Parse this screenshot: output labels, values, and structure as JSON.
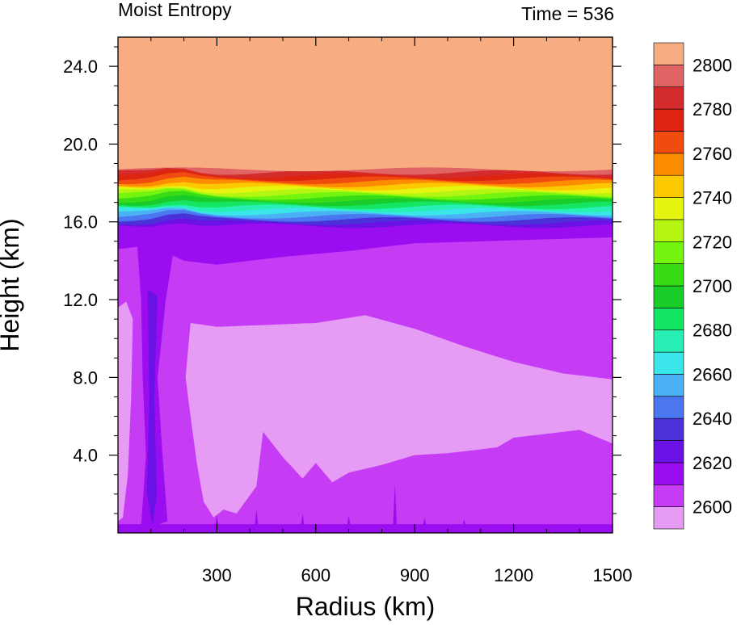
{
  "chart_data": {
    "type": "heatmap",
    "title_left": "Moist Entropy",
    "title_right": "Time = 536",
    "xlabel": "Radius (km)",
    "ylabel": "Height (km)",
    "xlim": [
      0,
      1500
    ],
    "ylim": [
      0,
      25.5
    ],
    "x_ticks": [
      300,
      600,
      900,
      1200,
      1500
    ],
    "x_tick_labels": [
      "300",
      "600",
      "900",
      "1200",
      "1500"
    ],
    "y_ticks": [
      4,
      8,
      12,
      16,
      20,
      24
    ],
    "y_tick_labels": [
      "4.0",
      "8.0",
      "12.0",
      "16.0",
      "20.0",
      "24.0"
    ],
    "colorbar": {
      "levels": [
        2600,
        2610,
        2620,
        2630,
        2640,
        2650,
        2660,
        2670,
        2680,
        2690,
        2700,
        2710,
        2720,
        2730,
        2740,
        2750,
        2760,
        2770,
        2780,
        2790,
        2800
      ],
      "tick_labels": [
        "2600",
        "2620",
        "2640",
        "2660",
        "2680",
        "2700",
        "2720",
        "2740",
        "2760",
        "2780",
        "2800"
      ],
      "colors": [
        "#e69bf5",
        "#c53cf4",
        "#9a0df0",
        "#6a12e6",
        "#4a32d8",
        "#4a76ef",
        "#4ab2f4",
        "#3ae6ea",
        "#28f0b4",
        "#14e664",
        "#1acc2a",
        "#38dc16",
        "#74f510",
        "#b4f512",
        "#e6f510",
        "#fcc800",
        "#fc8c00",
        "#f04c10",
        "#dc2410",
        "#d42c2c",
        "#e06464",
        "#f8ac82"
      ]
    },
    "regions": {
      "stratosphere_top_value": 2800,
      "tropopause_height_km": 18.7,
      "upper_band_value": 2615,
      "mid_troposphere_value": 2610,
      "lower_troposphere_value": 2600,
      "eyewall_radius_km": 110,
      "surface_value": 2620
    }
  }
}
